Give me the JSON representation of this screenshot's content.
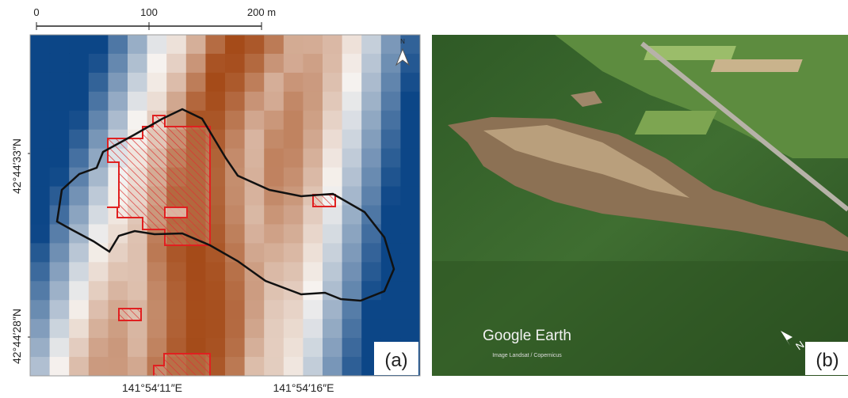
{
  "panel_a": {
    "scale_bar": {
      "labels": [
        "0",
        "100",
        "200 m"
      ]
    },
    "north": "N",
    "lat_labels": [
      "42°44′33″N",
      "42°44′28″N"
    ],
    "lon_labels": [
      "141°54′11″E",
      "141°54′16″E"
    ],
    "label": "(a)"
  },
  "panel_b": {
    "logo": "Google Earth",
    "credit": "Image Landsat / Copernicus",
    "north": "N",
    "label": "(b)"
  }
}
